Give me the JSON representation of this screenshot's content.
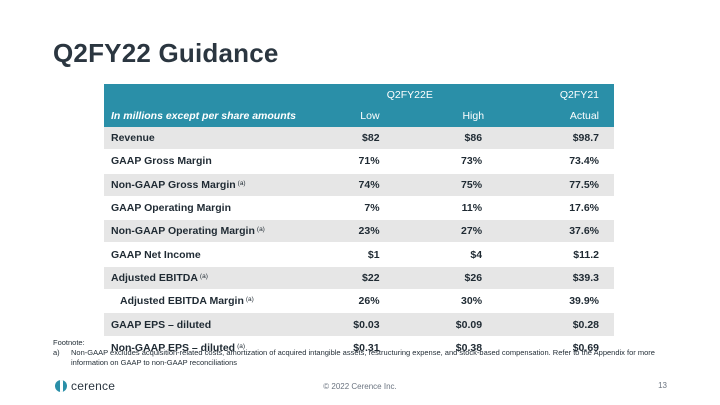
{
  "title": "Q2FY22 Guidance",
  "table": {
    "group_headers": [
      "Q2FY22E",
      "Q2FY21"
    ],
    "sub_headers": {
      "label": "In millions except per share amounts",
      "low": "Low",
      "high": "High",
      "actual": "Actual"
    },
    "rows": [
      {
        "label": "Revenue",
        "sup": "",
        "low": "$82",
        "high": "$86",
        "actual": "$98.7"
      },
      {
        "label": "GAAP Gross Margin",
        "sup": "",
        "low": "71%",
        "high": "73%",
        "actual": "73.4%"
      },
      {
        "label": "Non-GAAP Gross Margin",
        "sup": "(a)",
        "low": "74%",
        "high": "75%",
        "actual": "77.5%"
      },
      {
        "label": "GAAP Operating Margin",
        "sup": "",
        "low": "7%",
        "high": "11%",
        "actual": "17.6%"
      },
      {
        "label": "Non-GAAP Operating Margin",
        "sup": "(a)",
        "low": "23%",
        "high": "27%",
        "actual": "37.6%"
      },
      {
        "label": "GAAP Net Income",
        "sup": "",
        "low": "$1",
        "high": "$4",
        "actual": "$11.2"
      },
      {
        "label": "Adjusted EBITDA",
        "sup": "(a)",
        "low": "$22",
        "high": "$26",
        "actual": "$39.3"
      },
      {
        "label": "Adjusted EBITDA Margin",
        "sup": "(a)",
        "low": "26%",
        "high": "30%",
        "actual": "39.9%"
      },
      {
        "label": "GAAP EPS – diluted",
        "sup": "",
        "low": "$0.03",
        "high": "$0.09",
        "actual": "$0.28"
      },
      {
        "label": "Non-GAAP EPS – diluted",
        "sup": "(a)",
        "low": "$0.31",
        "high": "$0.38",
        "actual": "$0.69"
      }
    ]
  },
  "footnote": {
    "heading": "Footnote:",
    "mark": "a)",
    "text": "Non-GAAP excludes acquisition-related costs, amortization of acquired intangible assets, restructuring expense, and stock-based compensation.  Refer to the Appendix for more information on GAAP to non-GAAP reconciliations"
  },
  "footer": {
    "logo_text": "cerence",
    "copyright": "© 2022 Cerence Inc.",
    "page_number": "13"
  }
}
